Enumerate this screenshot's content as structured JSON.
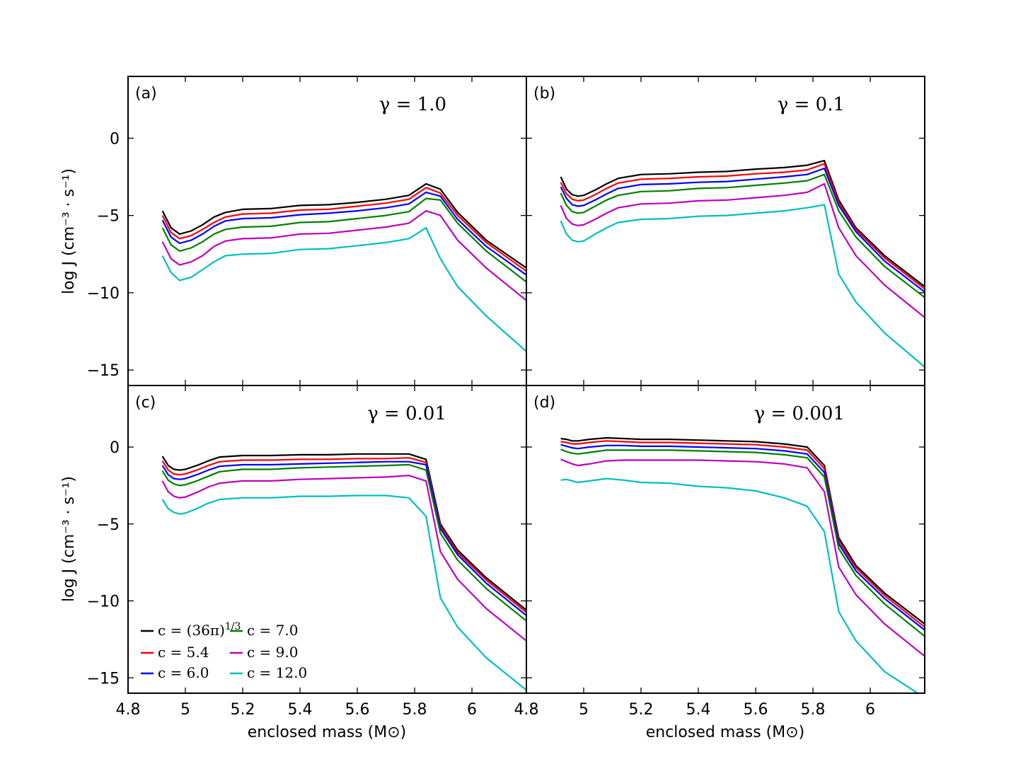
{
  "figure": {
    "ylabel": "log J (cm⁻³ · s⁻¹)",
    "xlabel": "enclosed mass (M⊙)"
  },
  "colors": {
    "c_36pi": "#000000",
    "c_5_4": "#ff0000",
    "c_6_0": "#0000ff",
    "c_7_0": "#007f00",
    "c_9_0": "#bf00bf",
    "c_12_0": "#00bfbf"
  },
  "legend": {
    "entries": [
      {
        "key": "c_36pi",
        "label": "c = (36π)^{1/3}"
      },
      {
        "key": "c_5_4",
        "label": "c = 5.4"
      },
      {
        "key": "c_6_0",
        "label": "c = 6.0"
      },
      {
        "key": "c_7_0",
        "label": "c = 7.0"
      },
      {
        "key": "c_9_0",
        "label": "c = 9.0"
      },
      {
        "key": "c_12_0",
        "label": "c = 12.0"
      }
    ]
  },
  "chart_data": [
    {
      "type": "line",
      "panel": "(a)",
      "gamma_label": "γ = 1.0",
      "xlim": [
        4.8,
        6.19
      ],
      "ylim": [
        -16,
        4
      ],
      "xticks": [
        4.8,
        5.0,
        5.2,
        5.4,
        5.6,
        5.8,
        6.0
      ],
      "yticks": [
        0,
        -5,
        -10,
        -15
      ],
      "x": [
        4.92,
        4.95,
        4.98,
        5.02,
        5.06,
        5.1,
        5.14,
        5.2,
        5.3,
        5.4,
        5.5,
        5.6,
        5.7,
        5.78,
        5.84,
        5.89,
        5.95,
        6.05,
        6.19
      ],
      "series": [
        {
          "name": "c_36pi",
          "values": [
            -4.7,
            -5.8,
            -6.2,
            -6.0,
            -5.6,
            -5.1,
            -4.8,
            -4.6,
            -4.55,
            -4.35,
            -4.3,
            -4.15,
            -3.95,
            -3.7,
            -2.95,
            -3.3,
            -4.8,
            -6.6,
            -8.4
          ]
        },
        {
          "name": "c_5_4",
          "values": [
            -5.0,
            -6.1,
            -6.5,
            -6.3,
            -5.9,
            -5.45,
            -5.1,
            -4.9,
            -4.85,
            -4.65,
            -4.6,
            -4.4,
            -4.2,
            -3.95,
            -3.2,
            -3.55,
            -5.0,
            -6.75,
            -8.6
          ]
        },
        {
          "name": "c_6_0",
          "values": [
            -5.3,
            -6.4,
            -6.8,
            -6.6,
            -6.2,
            -5.7,
            -5.35,
            -5.2,
            -5.15,
            -4.95,
            -4.85,
            -4.7,
            -4.5,
            -4.25,
            -3.5,
            -3.75,
            -5.25,
            -7.0,
            -8.85
          ]
        },
        {
          "name": "c_7_0",
          "values": [
            -5.8,
            -6.9,
            -7.3,
            -7.1,
            -6.7,
            -6.2,
            -5.9,
            -5.75,
            -5.7,
            -5.45,
            -5.4,
            -5.2,
            -5.0,
            -4.75,
            -3.9,
            -4.0,
            -5.5,
            -7.3,
            -9.3
          ]
        },
        {
          "name": "c_9_0",
          "values": [
            -6.7,
            -7.8,
            -8.2,
            -8.0,
            -7.6,
            -7.0,
            -6.65,
            -6.5,
            -6.45,
            -6.2,
            -6.15,
            -5.95,
            -5.75,
            -5.5,
            -4.7,
            -5.0,
            -6.6,
            -8.4,
            -10.5
          ]
        },
        {
          "name": "c_12_0",
          "values": [
            -7.6,
            -8.7,
            -9.2,
            -9.0,
            -8.5,
            -8.0,
            -7.6,
            -7.5,
            -7.45,
            -7.2,
            -7.15,
            -6.95,
            -6.75,
            -6.5,
            -5.8,
            -7.8,
            -9.6,
            -11.5,
            -13.8
          ]
        }
      ]
    },
    {
      "type": "line",
      "panel": "(b)",
      "gamma_label": "γ = 0.1",
      "xlim": [
        4.8,
        6.19
      ],
      "ylim": [
        -16,
        4
      ],
      "xticks": [
        4.8,
        5.0,
        5.2,
        5.4,
        5.6,
        5.8,
        6.0
      ],
      "yticks": [
        0,
        -5,
        -10,
        -15
      ],
      "x": [
        4.92,
        4.94,
        4.96,
        4.98,
        5.0,
        5.04,
        5.08,
        5.12,
        5.2,
        5.3,
        5.4,
        5.5,
        5.6,
        5.7,
        5.78,
        5.84,
        5.89,
        5.95,
        6.05,
        6.19
      ],
      "series": [
        {
          "name": "c_36pi",
          "values": [
            -2.5,
            -3.3,
            -3.65,
            -3.75,
            -3.7,
            -3.35,
            -2.95,
            -2.6,
            -2.35,
            -2.3,
            -2.2,
            -2.15,
            -2.0,
            -1.9,
            -1.75,
            -1.45,
            -4.0,
            -5.8,
            -7.6,
            -9.6
          ]
        },
        {
          "name": "c_5_4",
          "values": [
            -2.85,
            -3.6,
            -3.95,
            -4.05,
            -4.0,
            -3.65,
            -3.25,
            -2.9,
            -2.65,
            -2.6,
            -2.5,
            -2.45,
            -2.3,
            -2.2,
            -2.05,
            -1.65,
            -4.15,
            -5.9,
            -7.75,
            -9.75
          ]
        },
        {
          "name": "c_6_0",
          "values": [
            -3.15,
            -3.9,
            -4.3,
            -4.4,
            -4.35,
            -4.0,
            -3.6,
            -3.25,
            -3.0,
            -2.95,
            -2.85,
            -2.8,
            -2.65,
            -2.5,
            -2.35,
            -1.95,
            -4.35,
            -6.05,
            -7.95,
            -9.95
          ]
        },
        {
          "name": "c_7_0",
          "values": [
            -3.55,
            -4.35,
            -4.75,
            -4.85,
            -4.8,
            -4.4,
            -4.0,
            -3.7,
            -3.45,
            -3.4,
            -3.25,
            -3.2,
            -3.05,
            -2.9,
            -2.75,
            -2.35,
            -4.7,
            -6.4,
            -8.3,
            -10.3
          ]
        },
        {
          "name": "c_9_0",
          "values": [
            -4.35,
            -5.2,
            -5.55,
            -5.65,
            -5.6,
            -5.25,
            -4.85,
            -4.5,
            -4.25,
            -4.2,
            -4.05,
            -4.0,
            -3.85,
            -3.7,
            -3.5,
            -2.95,
            -5.8,
            -7.6,
            -9.5,
            -11.6
          ]
        },
        {
          "name": "c_12_0",
          "values": [
            -5.35,
            -6.2,
            -6.6,
            -6.7,
            -6.65,
            -6.2,
            -5.8,
            -5.45,
            -5.25,
            -5.2,
            -5.05,
            -5.0,
            -4.85,
            -4.7,
            -4.5,
            -4.3,
            -8.8,
            -10.6,
            -12.6,
            -14.8
          ]
        }
      ]
    },
    {
      "type": "line",
      "panel": "(c)",
      "gamma_label": "γ = 0.01",
      "xlim": [
        4.8,
        6.19
      ],
      "ylim": [
        -16,
        4
      ],
      "xticks": [
        4.8,
        5.0,
        5.2,
        5.4,
        5.6,
        5.8,
        6.0
      ],
      "yticks": [
        0,
        -5,
        -10,
        -15
      ],
      "x": [
        4.92,
        4.94,
        4.96,
        4.98,
        5.0,
        5.04,
        5.08,
        5.12,
        5.2,
        5.3,
        5.4,
        5.5,
        5.6,
        5.7,
        5.78,
        5.84,
        5.89,
        5.95,
        6.05,
        6.19
      ],
      "series": [
        {
          "name": "c_36pi",
          "values": [
            -0.6,
            -1.2,
            -1.45,
            -1.5,
            -1.45,
            -1.2,
            -0.9,
            -0.65,
            -0.55,
            -0.55,
            -0.5,
            -0.5,
            -0.45,
            -0.45,
            -0.45,
            -0.8,
            -5.0,
            -6.7,
            -8.5,
            -10.6
          ]
        },
        {
          "name": "c_5_4",
          "values": [
            -0.9,
            -1.5,
            -1.75,
            -1.8,
            -1.75,
            -1.5,
            -1.2,
            -0.95,
            -0.85,
            -0.85,
            -0.8,
            -0.8,
            -0.75,
            -0.75,
            -0.7,
            -1.0,
            -5.15,
            -6.85,
            -8.65,
            -10.75
          ]
        },
        {
          "name": "c_6_0",
          "values": [
            -1.2,
            -1.8,
            -2.05,
            -2.1,
            -2.05,
            -1.8,
            -1.5,
            -1.25,
            -1.15,
            -1.15,
            -1.1,
            -1.05,
            -1.0,
            -0.95,
            -0.95,
            -1.15,
            -5.3,
            -7.0,
            -8.85,
            -10.95
          ]
        },
        {
          "name": "c_7_0",
          "values": [
            -1.55,
            -2.15,
            -2.4,
            -2.5,
            -2.45,
            -2.2,
            -1.9,
            -1.6,
            -1.45,
            -1.45,
            -1.35,
            -1.3,
            -1.25,
            -1.2,
            -1.15,
            -1.5,
            -5.6,
            -7.35,
            -9.2,
            -11.3
          ]
        },
        {
          "name": "c_9_0",
          "values": [
            -2.2,
            -2.9,
            -3.2,
            -3.3,
            -3.25,
            -2.95,
            -2.6,
            -2.35,
            -2.2,
            -2.2,
            -2.1,
            -2.05,
            -2.0,
            -1.95,
            -1.85,
            -2.2,
            -6.8,
            -8.6,
            -10.5,
            -12.6
          ]
        },
        {
          "name": "c_12_0",
          "values": [
            -3.4,
            -4.0,
            -4.25,
            -4.35,
            -4.3,
            -4.0,
            -3.65,
            -3.4,
            -3.3,
            -3.3,
            -3.2,
            -3.2,
            -3.15,
            -3.15,
            -3.3,
            -4.5,
            -9.8,
            -11.7,
            -13.7,
            -15.8
          ]
        }
      ]
    },
    {
      "type": "line",
      "panel": "(d)",
      "gamma_label": "γ = 0.001",
      "xlim": [
        4.8,
        6.19
      ],
      "ylim": [
        -16,
        4
      ],
      "xticks": [
        4.8,
        5.0,
        5.2,
        5.4,
        5.6,
        5.8,
        6.0
      ],
      "yticks": [
        0,
        -5,
        -10,
        -15
      ],
      "x": [
        4.92,
        4.94,
        4.96,
        4.98,
        5.02,
        5.08,
        5.14,
        5.2,
        5.3,
        5.4,
        5.5,
        5.6,
        5.7,
        5.78,
        5.84,
        5.89,
        5.95,
        6.05,
        6.19
      ],
      "series": [
        {
          "name": "c_36pi",
          "values": [
            0.55,
            0.5,
            0.4,
            0.4,
            0.5,
            0.6,
            0.55,
            0.5,
            0.5,
            0.45,
            0.4,
            0.35,
            0.2,
            0.0,
            -1.2,
            -5.9,
            -7.7,
            -9.5,
            -11.5
          ]
        },
        {
          "name": "c_5_4",
          "values": [
            0.35,
            0.3,
            0.2,
            0.2,
            0.3,
            0.4,
            0.35,
            0.3,
            0.3,
            0.25,
            0.2,
            0.15,
            0.0,
            -0.2,
            -1.4,
            -6.1,
            -7.85,
            -9.65,
            -11.7
          ]
        },
        {
          "name": "c_6_0",
          "values": [
            0.15,
            0.05,
            -0.05,
            -0.1,
            0.0,
            0.1,
            0.1,
            0.05,
            0.05,
            0.0,
            -0.05,
            -0.1,
            -0.25,
            -0.45,
            -1.65,
            -6.3,
            -8.05,
            -9.85,
            -11.9
          ]
        },
        {
          "name": "c_7_0",
          "values": [
            -0.15,
            -0.3,
            -0.4,
            -0.45,
            -0.35,
            -0.2,
            -0.2,
            -0.2,
            -0.2,
            -0.25,
            -0.3,
            -0.35,
            -0.5,
            -0.7,
            -1.95,
            -6.6,
            -8.35,
            -10.2,
            -12.3
          ]
        },
        {
          "name": "c_9_0",
          "values": [
            -0.8,
            -0.95,
            -1.1,
            -1.2,
            -1.1,
            -0.9,
            -0.85,
            -0.85,
            -0.85,
            -0.85,
            -0.9,
            -0.95,
            -1.1,
            -1.35,
            -2.9,
            -7.8,
            -9.6,
            -11.5,
            -13.6
          ]
        },
        {
          "name": "c_12_0",
          "values": [
            -2.15,
            -2.1,
            -2.2,
            -2.3,
            -2.2,
            -2.05,
            -2.15,
            -2.3,
            -2.35,
            -2.55,
            -2.65,
            -2.85,
            -3.3,
            -3.85,
            -5.5,
            -10.7,
            -12.6,
            -14.6,
            -16.3
          ]
        }
      ]
    }
  ]
}
